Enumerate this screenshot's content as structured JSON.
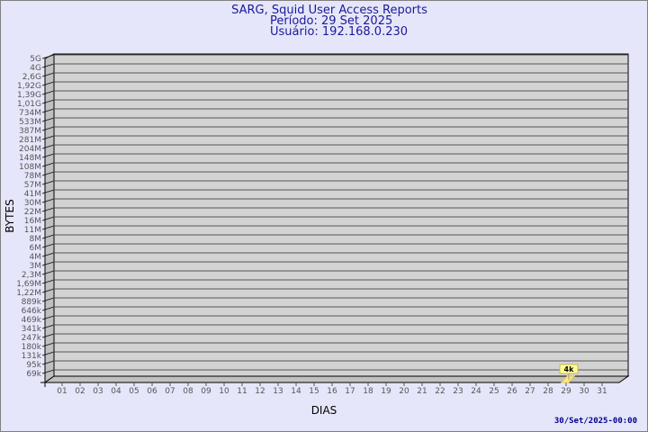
{
  "chart_data": {
    "type": "bar",
    "title": "SARG, Squid User Access Reports",
    "subtitle": [
      "Período: 29 Set 2025",
      "Usuário: 192.168.0.230"
    ],
    "xlabel": "DIAS",
    "ylabel": "BYTES",
    "y_scale": "log",
    "y_ticks": [
      "5G",
      "4G",
      "2,6G",
      "1,92G",
      "1,39G",
      "1,01G",
      "734M",
      "533M",
      "387M",
      "281M",
      "204M",
      "148M",
      "108M",
      "78M",
      "57M",
      "41M",
      "30M",
      "22M",
      "16M",
      "11M",
      "8M",
      "6M",
      "4M",
      "3M",
      "2,3M",
      "1,69M",
      "1,22M",
      "889k",
      "646k",
      "469k",
      "341k",
      "247k",
      "180k",
      "131k",
      "95k",
      "69k"
    ],
    "categories": [
      "01",
      "02",
      "03",
      "04",
      "05",
      "06",
      "07",
      "08",
      "09",
      "10",
      "11",
      "12",
      "13",
      "14",
      "15",
      "16",
      "17",
      "18",
      "19",
      "20",
      "21",
      "22",
      "23",
      "24",
      "25",
      "26",
      "27",
      "28",
      "29",
      "30",
      "31"
    ],
    "series": [
      {
        "points": [
          {
            "x": "29",
            "y": 4000,
            "label": "4k"
          }
        ]
      }
    ],
    "grid": true,
    "colors": {
      "background": "#e6e6fa",
      "plot": "#d3d3d3",
      "wall": "#c0c0c0",
      "bar": "#ffe680",
      "label_box": "#ffff99",
      "title": "#1a1a9a"
    }
  },
  "footer": {
    "timestamp": "30/Set/2025-00:00"
  }
}
